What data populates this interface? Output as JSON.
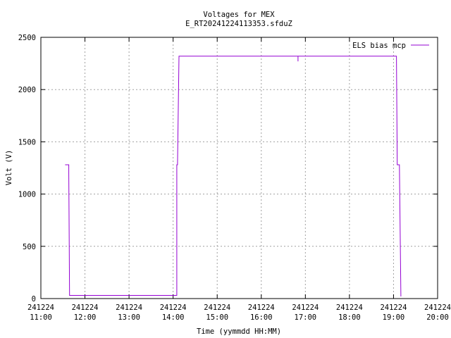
{
  "chart_data": {
    "type": "line",
    "title": "Voltages for MEX",
    "subtitle": "E_RT20241224113353.sfduZ",
    "xlabel": "Time (yymmdd HH:MM)",
    "ylabel": "Volt (V)",
    "xlim": [
      "241224 11:00",
      "241224 20:00"
    ],
    "ylim": [
      0,
      2500
    ],
    "x_ticks": [
      {
        "date": "241224",
        "time": "11:00"
      },
      {
        "date": "241224",
        "time": "12:00"
      },
      {
        "date": "241224",
        "time": "13:00"
      },
      {
        "date": "241224",
        "time": "14:00"
      },
      {
        "date": "241224",
        "time": "15:00"
      },
      {
        "date": "241224",
        "time": "16:00"
      },
      {
        "date": "241224",
        "time": "17:00"
      },
      {
        "date": "241224",
        "time": "18:00"
      },
      {
        "date": "241224",
        "time": "19:00"
      },
      {
        "date": "241224",
        "time": "20:00"
      }
    ],
    "y_ticks": [
      "0",
      "500",
      "1000",
      "1500",
      "2000",
      "2500"
    ],
    "grid": true,
    "legend_position": "top-right",
    "series": [
      {
        "name": "ELS bias mcp",
        "color": "#9400d3",
        "x": [
          "241224 11:33",
          "241224 11:38",
          "241224 11:38",
          "241224 11:39",
          "241224 14:05",
          "241224 14:05",
          "241224 14:06",
          "241224 14:08",
          "241224 16:50",
          "241224 16:50",
          "241224 16:50",
          "241224 19:04",
          "241224 19:05",
          "241224 19:08",
          "241224 19:10"
        ],
        "values": [
          1280,
          1280,
          1200,
          30,
          30,
          1280,
          1280,
          2320,
          2320,
          2270,
          2320,
          2320,
          1280,
          1280,
          20
        ]
      }
    ]
  }
}
